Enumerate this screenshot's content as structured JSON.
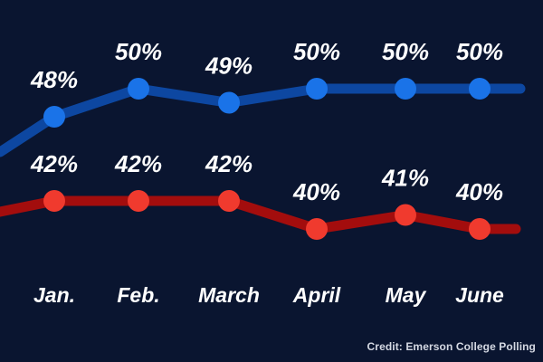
{
  "credit": "Credit: Emerson College Polling",
  "chart_data": {
    "type": "line",
    "categories": [
      "Jan.",
      "Feb.",
      "March",
      "April",
      "May",
      "June"
    ],
    "series": [
      {
        "color": "#1a73e8",
        "line_color": "#0d47a1",
        "values": [
          48,
          50,
          49,
          50,
          50,
          50
        ],
        "labels": [
          "48%",
          "50%",
          "49%",
          "50%",
          "50%",
          "50%"
        ]
      },
      {
        "color": "#f03a2e",
        "line_color": "#a30d0d",
        "values": [
          42,
          42,
          42,
          40,
          41,
          40
        ],
        "labels": [
          "42%",
          "42%",
          "42%",
          "40%",
          "41%",
          "40%"
        ]
      }
    ],
    "background": "#0a1530",
    "grid": false,
    "legend": "none"
  }
}
